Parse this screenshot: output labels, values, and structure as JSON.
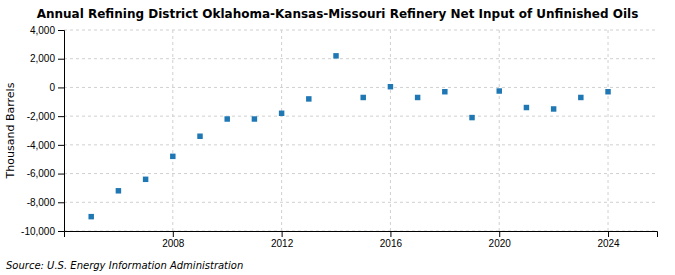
{
  "chart_data": {
    "type": "scatter",
    "title": "Annual Refining District Oklahoma-Kansas-Missouri Refinery Net Input of Unfinished Oils",
    "ylabel": "Thousand Barrels",
    "source": "Source: U.S. Energy Information Administration",
    "x": [
      2005,
      2006,
      2007,
      2008,
      2009,
      2010,
      2011,
      2012,
      2013,
      2014,
      2015,
      2016,
      2017,
      2018,
      2019,
      2020,
      2021,
      2022,
      2023,
      2024
    ],
    "values": [
      -9000,
      -7200,
      -6400,
      -4800,
      -3400,
      -2200,
      -2200,
      -1800,
      -800,
      2200,
      -700,
      50,
      -700,
      -300,
      -2100,
      -250,
      -1400,
      -1500,
      -700,
      -300
    ],
    "xlim": [
      2004.0,
      2025.8
    ],
    "xticks": [
      2008,
      2012,
      2016,
      2020,
      2024
    ],
    "ylim": [
      -10000,
      4000
    ],
    "yticks": [
      {
        "value": -10000,
        "label": "-10,000"
      },
      {
        "value": -8000,
        "label": "-8,000"
      },
      {
        "value": -6000,
        "label": "-6,000"
      },
      {
        "value": -4000,
        "label": "-4,000"
      },
      {
        "value": -2000,
        "label": "-2,000"
      },
      0,
      {
        "value": 2000,
        "label": "2,000"
      },
      {
        "value": 4000,
        "label": "4,000"
      }
    ],
    "grid": true,
    "marker": "square"
  }
}
